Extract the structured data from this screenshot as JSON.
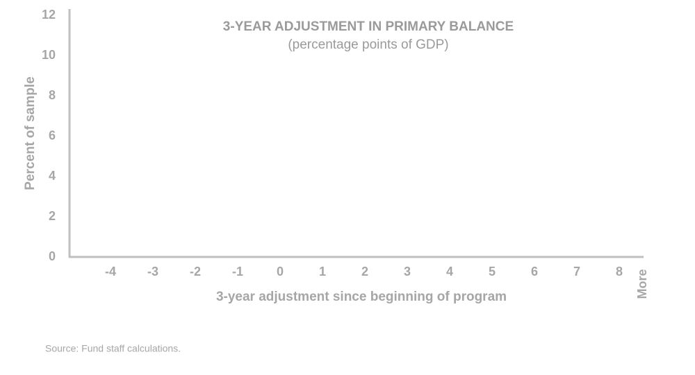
{
  "chart_data": {
    "type": "bar",
    "title": "3-YEAR ADJUSTMENT IN PRIMARY BALANCE",
    "subtitle": "(percentage points of GDP)",
    "x_label": "3-year adjustment since beginning of program",
    "y_label": "Percent of sample",
    "categories": [
      "-4",
      "-3",
      "-2",
      "-1",
      "0",
      "1",
      "2",
      "3",
      "4",
      "5",
      "6",
      "7",
      "8",
      "More"
    ],
    "ylim": [
      0,
      12
    ],
    "yticks": [
      0,
      2,
      4,
      6,
      8,
      10,
      12
    ],
    "source": "Source: Fund staff calculations."
  }
}
